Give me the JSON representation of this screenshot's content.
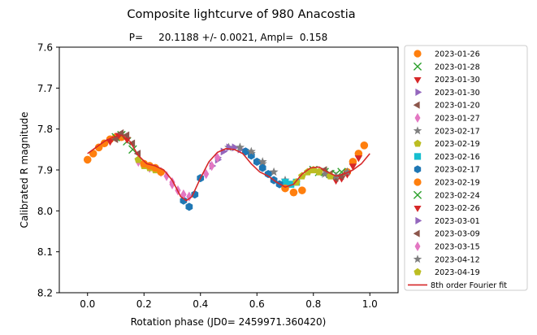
{
  "chart_data": {
    "type": "scatter",
    "title": "Composite lightcurve of 980 Anacostia",
    "subtitle": "P=     20.1188 +/- 0.0021, Ampl=  0.158",
    "xlabel": "Rotation phase (JD0= 2459971.360420)",
    "ylabel": "Calibrated R magnitude",
    "xlim": [
      -0.1,
      1.1
    ],
    "ylim": [
      8.2,
      7.6
    ],
    "y_inverted": true,
    "xticks": [
      0.0,
      0.2,
      0.4,
      0.6,
      0.8,
      1.0
    ],
    "xtick_labels": [
      "0.0",
      "0.2",
      "0.4",
      "0.6",
      "0.8",
      "1.0"
    ],
    "yticks": [
      7.6,
      7.7,
      7.8,
      7.9,
      8.0,
      8.1,
      8.2
    ],
    "ytick_labels": [
      "7.6",
      "7.7",
      "7.8",
      "7.9",
      "8.0",
      "8.1",
      "8.2"
    ],
    "grid": false,
    "legend_position": "outside-right",
    "series": [
      {
        "name": "2023-01-26",
        "marker": "circle",
        "color": "#ff7f0e",
        "x": [
          0.0,
          0.02,
          0.04,
          0.06,
          0.08,
          0.1,
          0.12
        ],
        "y": [
          7.875,
          7.86,
          7.845,
          7.835,
          7.825,
          7.82,
          7.82
        ]
      },
      {
        "name": "2023-01-28",
        "marker": "x",
        "color": "#2ca02c",
        "x": [
          0.1,
          0.12,
          0.14,
          0.16
        ],
        "y": [
          7.82,
          7.815,
          7.83,
          7.85
        ]
      },
      {
        "name": "2023-01-30",
        "marker": "triangle-down",
        "color": "#d62728",
        "x": [
          0.08,
          0.11,
          0.14
        ],
        "y": [
          7.83,
          7.815,
          7.825
        ]
      },
      {
        "name": "2023-01-30",
        "marker": "triangle-right",
        "color": "#9467bd",
        "x": [
          0.46,
          0.48,
          0.5,
          0.52,
          0.54,
          0.56
        ],
        "y": [
          7.875,
          7.855,
          7.845,
          7.845,
          7.85,
          7.855
        ]
      },
      {
        "name": "2023-01-20",
        "marker": "triangle-left",
        "color": "#8c564b",
        "x": [
          0.1,
          0.12,
          0.14,
          0.16,
          0.18
        ],
        "y": [
          7.825,
          7.81,
          7.815,
          7.835,
          7.86
        ]
      },
      {
        "name": "2023-01-27",
        "marker": "diamond",
        "color": "#e377c2",
        "x": [
          0.18,
          0.22,
          0.26,
          0.3,
          0.34,
          0.36
        ],
        "y": [
          7.88,
          7.895,
          7.905,
          7.935,
          7.96,
          7.965
        ]
      },
      {
        "name": "2023-02-17",
        "marker": "star",
        "color": "#7f7f7f",
        "x": [
          0.5,
          0.54,
          0.58,
          0.62,
          0.66,
          0.7
        ],
        "y": [
          7.845,
          7.845,
          7.86,
          7.885,
          7.905,
          7.925
        ]
      },
      {
        "name": "2023-02-19",
        "marker": "pentagon",
        "color": "#bcbd22",
        "x": [
          0.18,
          0.2,
          0.22,
          0.24
        ],
        "y": [
          7.875,
          7.89,
          7.895,
          7.9
        ]
      },
      {
        "name": "2023-02-16",
        "marker": "square",
        "color": "#17becf",
        "x": [
          0.7,
          0.72,
          0.74
        ],
        "y": [
          7.93,
          7.935,
          7.93
        ]
      },
      {
        "name": "2023-02-17",
        "marker": "hexagon",
        "color": "#1f77b4",
        "x": [
          0.34,
          0.36,
          0.38,
          0.4,
          0.56,
          0.58,
          0.6,
          0.62,
          0.64,
          0.66,
          0.68
        ],
        "y": [
          7.975,
          7.99,
          7.96,
          7.92,
          7.855,
          7.865,
          7.88,
          7.895,
          7.91,
          7.925,
          7.935
        ]
      },
      {
        "name": "2023-02-19",
        "marker": "circle",
        "color": "#ff7f0e",
        "x": [
          0.2,
          0.22,
          0.24,
          0.26,
          0.7,
          0.73,
          0.76,
          0.92,
          0.94,
          0.96,
          0.98
        ],
        "y": [
          7.885,
          7.89,
          7.895,
          7.905,
          7.945,
          7.955,
          7.95,
          7.905,
          7.88,
          7.86,
          7.84
        ]
      },
      {
        "name": "2023-02-24",
        "marker": "x",
        "color": "#2ca02c",
        "x": [
          0.8,
          0.82,
          0.84,
          0.86,
          0.88,
          0.9
        ],
        "y": [
          7.9,
          7.905,
          7.905,
          7.91,
          7.91,
          7.905
        ]
      },
      {
        "name": "2023-02-26",
        "marker": "triangle-down",
        "color": "#d62728",
        "x": [
          0.88,
          0.9,
          0.92,
          0.94,
          0.96
        ],
        "y": [
          7.925,
          7.92,
          7.91,
          7.89,
          7.87
        ]
      },
      {
        "name": "2023-03-01",
        "marker": "triangle-right",
        "color": "#9467bd",
        "x": [
          0.44,
          0.46,
          0.48,
          0.5,
          0.52
        ],
        "y": [
          7.89,
          7.87,
          7.855,
          7.845,
          7.845
        ]
      },
      {
        "name": "2023-03-09",
        "marker": "triangle-left",
        "color": "#8c564b",
        "x": [
          0.84,
          0.86,
          0.88,
          0.9
        ],
        "y": [
          7.9,
          7.91,
          7.92,
          7.915
        ]
      },
      {
        "name": "2023-03-15",
        "marker": "diamond",
        "color": "#e377c2",
        "x": [
          0.28,
          0.3,
          0.32,
          0.34,
          0.42,
          0.44,
          0.46
        ],
        "y": [
          7.915,
          7.93,
          7.95,
          7.96,
          7.91,
          7.89,
          7.87
        ]
      },
      {
        "name": "2023-04-12",
        "marker": "star",
        "color": "#7f7f7f",
        "x": [
          0.54,
          0.58,
          0.62,
          0.84,
          0.88,
          0.92
        ],
        "y": [
          7.845,
          7.855,
          7.88,
          7.91,
          7.915,
          7.905
        ]
      },
      {
        "name": "2023-04-19",
        "marker": "pentagon",
        "color": "#bcbd22",
        "x": [
          0.74,
          0.76,
          0.78,
          0.8,
          0.82,
          0.86
        ],
        "y": [
          7.93,
          7.915,
          7.905,
          7.9,
          7.905,
          7.915
        ]
      }
    ],
    "fit": {
      "name": " 8th order Fourier fit",
      "color": "#d62728",
      "x": [
        0.0,
        0.03,
        0.06,
        0.09,
        0.12,
        0.15,
        0.18,
        0.21,
        0.24,
        0.27,
        0.3,
        0.33,
        0.35,
        0.37,
        0.4,
        0.43,
        0.46,
        0.49,
        0.52,
        0.55,
        0.58,
        0.61,
        0.64,
        0.67,
        0.7,
        0.73,
        0.76,
        0.79,
        0.82,
        0.85,
        0.88,
        0.91,
        0.94,
        0.97,
        1.0
      ],
      "y": [
        7.86,
        7.845,
        7.83,
        7.82,
        7.815,
        7.83,
        7.865,
        7.885,
        7.89,
        7.9,
        7.925,
        7.965,
        7.975,
        7.965,
        7.92,
        7.88,
        7.857,
        7.848,
        7.85,
        7.86,
        7.885,
        7.905,
        7.915,
        7.93,
        7.942,
        7.935,
        7.91,
        7.895,
        7.893,
        7.905,
        7.915,
        7.91,
        7.9,
        7.885,
        7.86
      ]
    }
  }
}
